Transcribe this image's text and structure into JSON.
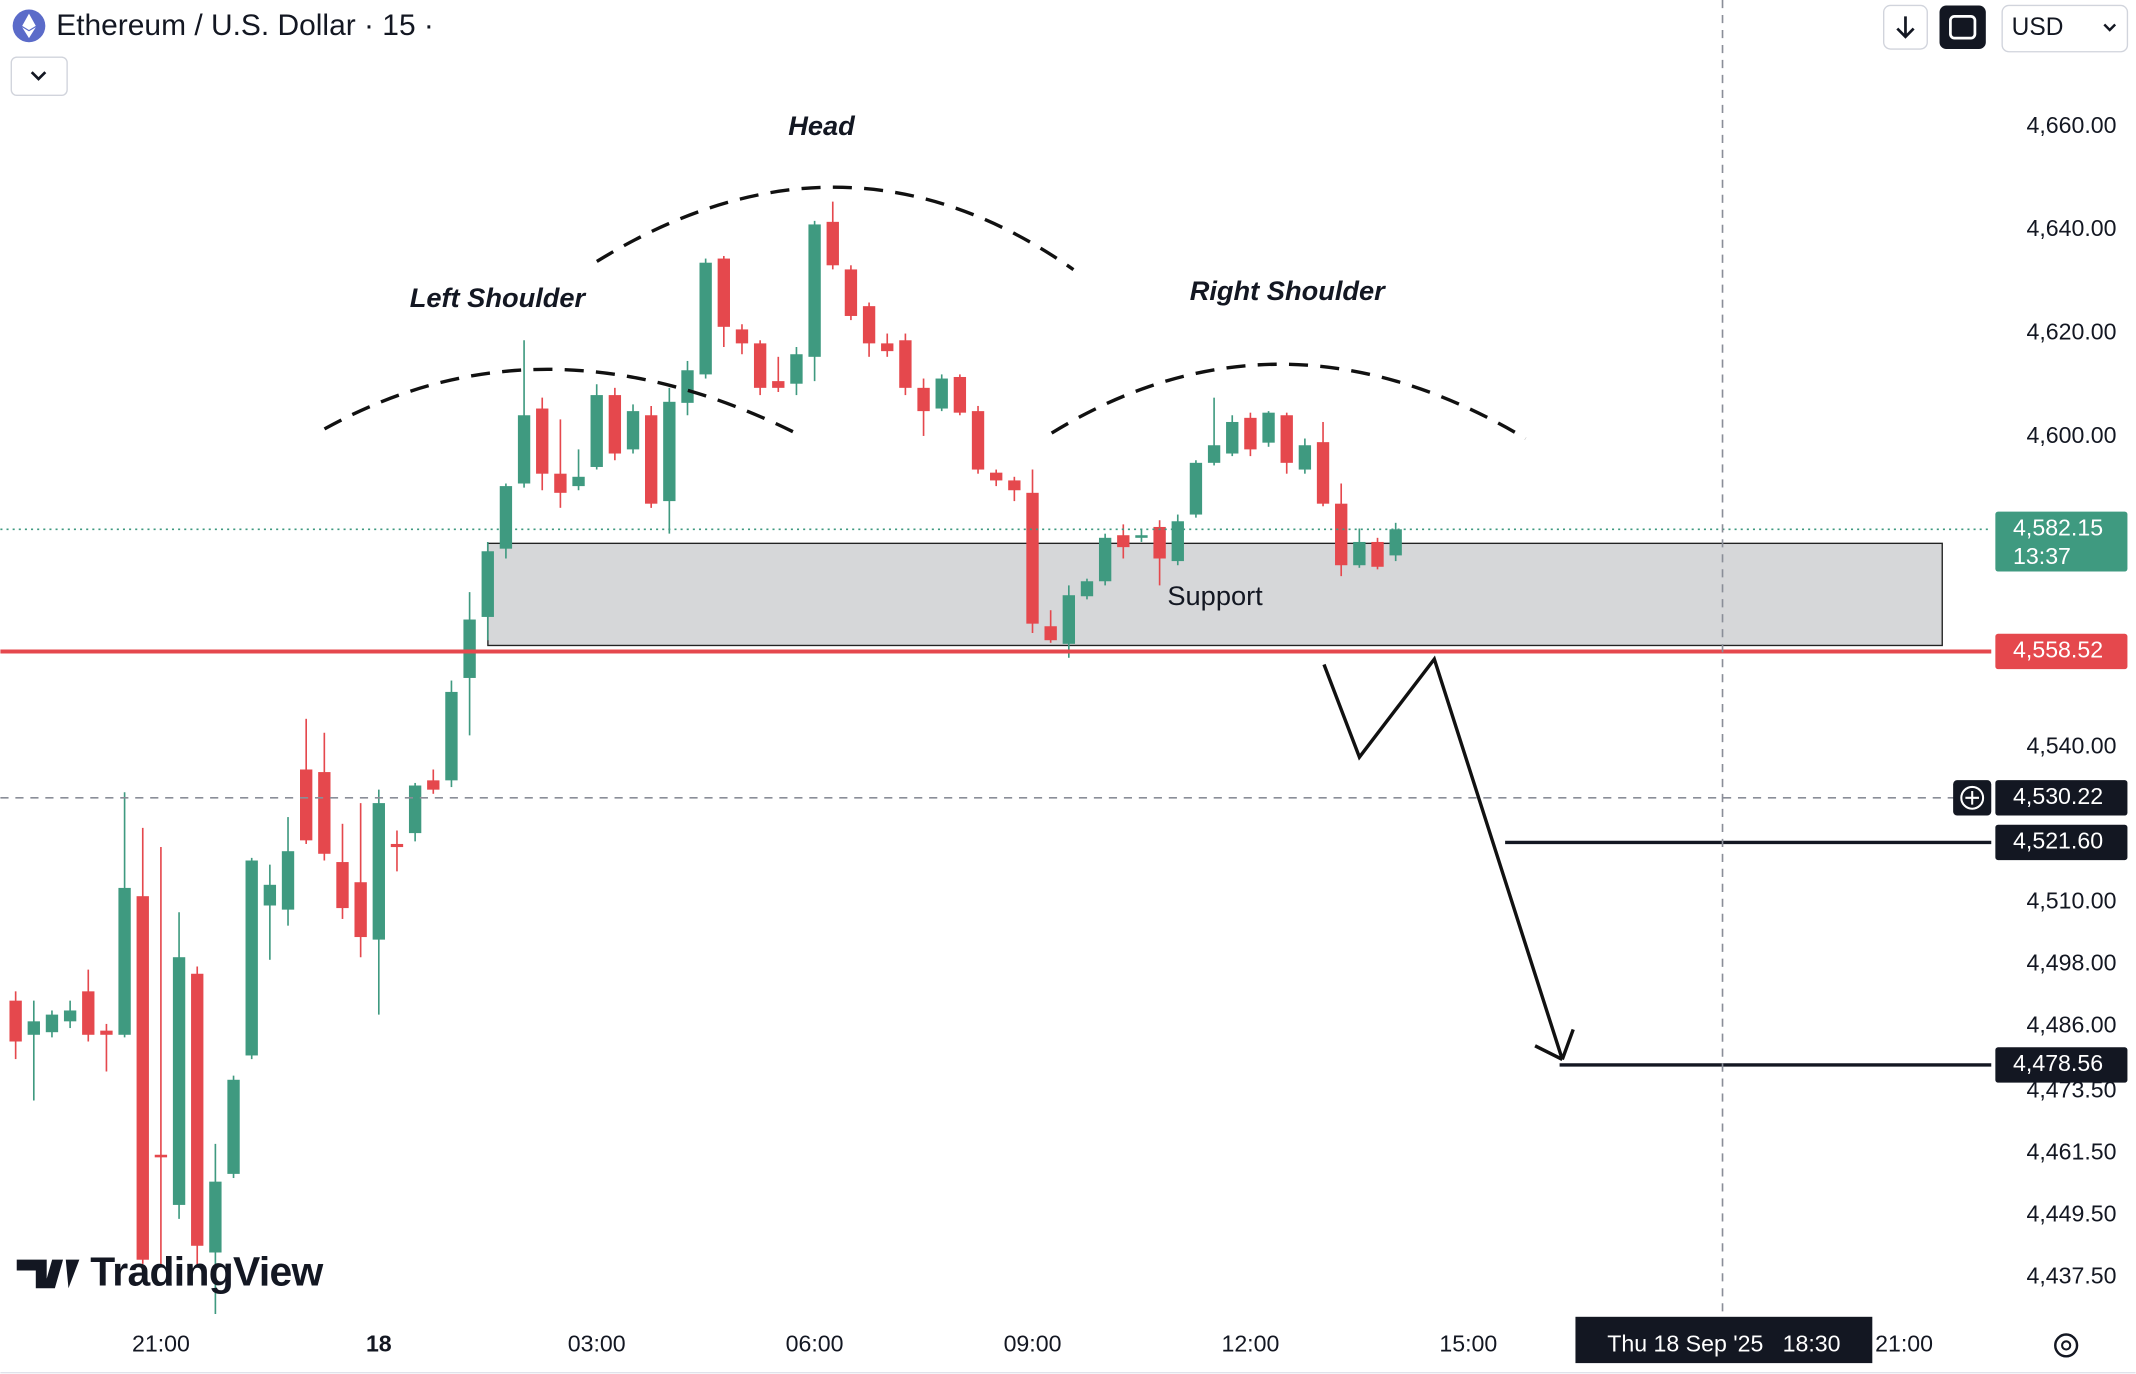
{
  "chart_data": {
    "type": "candlestick",
    "title": "Ethereum / U.S. Dollar · 15 ·",
    "currency": "USD",
    "watermark": "TradingView",
    "annotations": [
      "Left Shoulder",
      "Head",
      "Right Shoulder",
      "Support"
    ],
    "up_color": "#3f9a80",
    "down_color": "#e5484d",
    "xlim": [
      18.79,
      46.2
    ],
    "xticks": [
      {
        "value": 21,
        "label": "21:00"
      },
      {
        "value": 24,
        "label": "18"
      },
      {
        "value": 27,
        "label": "03:00"
      },
      {
        "value": 30,
        "label": "06:00"
      },
      {
        "value": 33,
        "label": "09:00"
      },
      {
        "value": 36,
        "label": "12:00"
      },
      {
        "value": 39,
        "label": "15:00"
      },
      {
        "value": 45,
        "label": "21:00"
      }
    ],
    "ylim": [
      4429.6,
      4684.5
    ],
    "yticks": [
      {
        "value": 4660,
        "label": "4,660.00"
      },
      {
        "value": 4640,
        "label": "4,640.00"
      },
      {
        "value": 4620,
        "label": "4,620.00"
      },
      {
        "value": 4600,
        "label": "4,600.00"
      },
      {
        "value": 4540,
        "label": "4,540.00"
      },
      {
        "value": 4510,
        "label": "4,510.00"
      },
      {
        "value": 4498,
        "label": "4,498.00"
      },
      {
        "value": 4486,
        "label": "4,486.00"
      },
      {
        "value": 4473.5,
        "label": "4,473.50"
      },
      {
        "value": 4461.5,
        "label": "4,461.50"
      },
      {
        "value": 4449.5,
        "label": "4,449.50"
      },
      {
        "value": 4437.5,
        "label": "4,437.50"
      }
    ],
    "x": [
      19,
      19.25,
      19.5,
      19.75,
      20,
      20.25,
      20.5,
      20.75,
      21,
      21.25,
      21.5,
      21.75,
      22,
      22.25,
      22.5,
      22.75,
      23,
      23.25,
      23.5,
      23.75,
      24,
      24.25,
      24.5,
      24.75,
      25,
      25.25,
      25.5,
      25.75,
      26,
      26.25,
      26.5,
      26.75,
      27,
      27.25,
      27.5,
      27.75,
      28,
      28.25,
      28.5,
      28.75,
      29,
      29.25,
      29.5,
      29.75,
      30,
      30.25,
      30.5,
      30.75,
      31,
      31.25,
      31.5,
      31.75,
      32,
      32.25,
      32.5,
      32.75,
      33,
      33.25,
      33.5,
      33.75,
      34,
      34.25,
      34.5,
      34.75,
      35,
      35.25,
      35.5,
      35.75,
      36,
      36.25,
      36.5,
      36.75,
      37,
      37.25,
      37.5,
      37.75,
      38
    ],
    "open": [
      4491.0,
      4484.4,
      4484.9,
      4487.0,
      4492.8,
      4485.2,
      4484.4,
      4511.2,
      4461.2,
      4451.5,
      4496.2,
      4442.3,
      4457.5,
      4480.4,
      4509.4,
      4508.6,
      4535.7,
      4535.2,
      4517.8,
      4513.9,
      4502.8,
      4521.3,
      4523.4,
      4533.6,
      4533.6,
      4553.4,
      4565.2,
      4578.4,
      4591.0,
      4605.5,
      4592.9,
      4590.5,
      4594.2,
      4608.1,
      4597.6,
      4604.2,
      4587.6,
      4606.6,
      4612.1,
      4634.5,
      4620.8,
      4618.1,
      4610.8,
      4610.3,
      4615.5,
      4641.6,
      4632.4,
      4625.3,
      4618.1,
      4618.7,
      4609.5,
      4605.5,
      4611.6,
      4605.0,
      4593.1,
      4591.6,
      4589.2,
      4563.4,
      4560.0,
      4569.2,
      4572.1,
      4581.0,
      4580.5,
      4582.6,
      4576.0,
      4585.0,
      4595.0,
      4596.8,
      4603.7,
      4598.9,
      4604.2,
      4593.7,
      4599.0,
      4587.1,
      4575.2,
      4579.7,
      4577.1
    ],
    "high": [
      4492.8,
      4491.0,
      4489.1,
      4491.0,
      4497.0,
      4486.5,
      4531.3,
      4524.4,
      4520.7,
      4508.1,
      4497.6,
      4463.3,
      4476.5,
      4518.6,
      4517.3,
      4526.5,
      4545.5,
      4542.8,
      4525.2,
      4529.2,
      4531.8,
      4523.9,
      4533.1,
      4535.7,
      4552.9,
      4570.0,
      4579.7,
      4591.0,
      4618.7,
      4607.6,
      4603.4,
      4597.6,
      4610.2,
      4609.5,
      4606.3,
      4606.0,
      4609.5,
      4614.7,
      4634.5,
      4635.0,
      4621.8,
      4618.7,
      4615.5,
      4617.4,
      4641.8,
      4645.5,
      4633.2,
      4626.0,
      4620.0,
      4620.0,
      4611.3,
      4612.1,
      4612.1,
      4606.0,
      4593.7,
      4592.3,
      4593.7,
      4566.5,
      4571.3,
      4572.6,
      4581.3,
      4583.1,
      4582.3,
      4583.9,
      4585.0,
      4595.5,
      4607.6,
      4604.2,
      4604.7,
      4605.0,
      4604.7,
      4599.7,
      4602.9,
      4591.0,
      4582.3,
      4580.5,
      4583.4
    ],
    "low": [
      4479.7,
      4471.7,
      4483.9,
      4485.7,
      4483.1,
      4477.3,
      4483.9,
      4440.1,
      4439.6,
      4448.8,
      4439.6,
      4430.4,
      4456.7,
      4479.7,
      4498.9,
      4505.5,
      4521.3,
      4518.1,
      4506.8,
      4499.4,
      4488.3,
      4516.0,
      4521.8,
      4531.0,
      4532.3,
      4542.3,
      4560.7,
      4576.5,
      4590.2,
      4589.7,
      4586.3,
      4589.7,
      4593.7,
      4595.5,
      4596.8,
      4586.3,
      4581.3,
      4604.2,
      4611.3,
      4617.4,
      4616.0,
      4608.1,
      4608.7,
      4608.1,
      4610.8,
      4632.4,
      4622.6,
      4615.5,
      4615.5,
      4608.1,
      4600.2,
      4605.0,
      4604.2,
      4592.9,
      4590.5,
      4587.6,
      4562.1,
      4560.2,
      4557.3,
      4568.6,
      4571.3,
      4576.5,
      4579.7,
      4571.3,
      4575.2,
      4584.4,
      4594.5,
      4596.3,
      4596.3,
      4598.1,
      4592.9,
      4592.9,
      4586.6,
      4573.1,
      4574.7,
      4574.4,
      4576.0
    ],
    "close": [
      4483.1,
      4487.0,
      4488.3,
      4489.1,
      4484.4,
      4484.4,
      4512.8,
      4440.9,
      4460.7,
      4499.4,
      4443.6,
      4456.0,
      4475.7,
      4518.1,
      4513.4,
      4519.9,
      4522.0,
      4519.4,
      4508.9,
      4503.3,
      4529.2,
      4520.7,
      4532.6,
      4531.8,
      4550.7,
      4564.7,
      4577.9,
      4590.5,
      4604.2,
      4592.9,
      4589.2,
      4592.3,
      4608.1,
      4596.8,
      4605.0,
      4587.1,
      4606.8,
      4612.9,
      4633.7,
      4621.3,
      4618.1,
      4609.5,
      4609.5,
      4616.0,
      4641.1,
      4633.2,
      4623.4,
      4618.1,
      4616.6,
      4609.5,
      4605.0,
      4611.3,
      4604.7,
      4593.7,
      4591.6,
      4589.7,
      4563.9,
      4560.7,
      4569.4,
      4572.1,
      4580.5,
      4578.7,
      4581.0,
      4576.5,
      4583.7,
      4595.0,
      4598.4,
      4602.9,
      4597.6,
      4604.7,
      4595.0,
      4598.4,
      4587.1,
      4575.2,
      4579.7,
      4574.9,
      4582.15
    ],
    "price_labels": [
      {
        "value": 4582.15,
        "label": "4,582.15",
        "countdown": "13:37",
        "color": "#3f9a80",
        "line": "dotted"
      },
      {
        "value": 4558.52,
        "label": "4,558.52",
        "color": "#e5484d",
        "line": "solid"
      },
      {
        "value": 4530.22,
        "label": "4,530.22",
        "color": "#131722",
        "line": "dashed"
      },
      {
        "value": 4521.6,
        "label": "4,521.60",
        "color": "#131722",
        "line": "solid"
      },
      {
        "value": 4478.56,
        "label": "4,478.56",
        "color": "#131722",
        "line": "solid"
      }
    ],
    "crosshair": {
      "x": 42.5,
      "label": "Thu 18 Sep '25   18:30"
    }
  }
}
